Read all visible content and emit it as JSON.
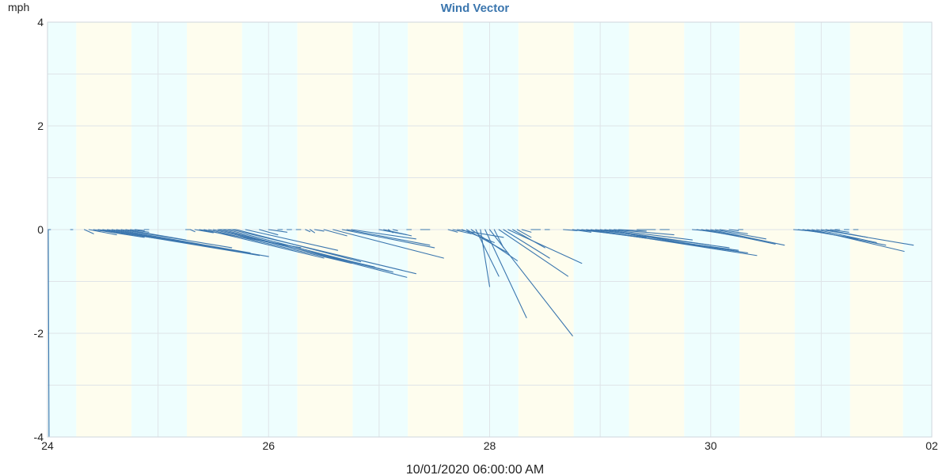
{
  "chart_data": {
    "type": "vector",
    "title": "Wind Vector",
    "ylabel": "mph",
    "xlabel": "10/01/2020 06:00:00 AM",
    "x_tick_labels": [
      "24",
      "26",
      "28",
      "30",
      "02"
    ],
    "y_tick_labels": [
      "4",
      "2",
      "0",
      "-2",
      "-4"
    ],
    "xlim": [
      "2020-09-24 00:00",
      "2020-10-02 00:00"
    ],
    "ylim": [
      -4,
      4
    ],
    "x_ticks": [
      "2020-09-24 00:00",
      "2020-09-26 00:00",
      "2020-09-28 00:00",
      "2020-09-30 00:00",
      "2020-10-02 00:00"
    ],
    "y_ticks": [
      4,
      2,
      0,
      -2,
      -4
    ],
    "grid": true,
    "background_bands": {
      "night_color": "#eefefe",
      "day_color": "#fefdee",
      "periods": [
        {
          "start": "2020-09-24 00:00",
          "end": "2020-09-24 06:15",
          "phase": "night"
        },
        {
          "start": "2020-09-24 06:15",
          "end": "2020-09-24 18:15",
          "phase": "day"
        },
        {
          "start": "2020-09-24 18:15",
          "end": "2020-09-25 06:15",
          "phase": "night"
        },
        {
          "start": "2020-09-25 06:15",
          "end": "2020-09-25 18:15",
          "phase": "day"
        },
        {
          "start": "2020-09-25 18:15",
          "end": "2020-09-26 06:15",
          "phase": "night"
        },
        {
          "start": "2020-09-26 06:15",
          "end": "2020-09-26 18:15",
          "phase": "day"
        },
        {
          "start": "2020-09-26 18:15",
          "end": "2020-09-27 06:15",
          "phase": "night"
        },
        {
          "start": "2020-09-27 06:15",
          "end": "2020-09-27 18:15",
          "phase": "day"
        },
        {
          "start": "2020-09-27 18:15",
          "end": "2020-09-28 06:15",
          "phase": "night"
        },
        {
          "start": "2020-09-28 06:15",
          "end": "2020-09-28 18:15",
          "phase": "day"
        },
        {
          "start": "2020-09-28 18:15",
          "end": "2020-09-29 06:15",
          "phase": "night"
        },
        {
          "start": "2020-09-29 06:15",
          "end": "2020-09-29 18:15",
          "phase": "day"
        },
        {
          "start": "2020-09-29 18:15",
          "end": "2020-09-30 06:15",
          "phase": "night"
        },
        {
          "start": "2020-09-30 06:15",
          "end": "2020-09-30 18:15",
          "phase": "day"
        },
        {
          "start": "2020-09-30 18:15",
          "end": "2020-10-01 06:15",
          "phase": "night"
        },
        {
          "start": "2020-10-01 06:15",
          "end": "2020-10-01 17:45",
          "phase": "day"
        },
        {
          "start": "2020-10-01 17:45",
          "end": "2020-10-02 00:00",
          "phase": "night"
        }
      ]
    },
    "series": [
      {
        "color": "#3b76ae",
        "segments": [
          {
            "x": "2020-09-24 00:00",
            "x_end": "2020-09-24 00:15",
            "y_end": 0.0
          },
          {
            "x": "2020-09-24 00:10",
            "x_end": "2020-09-24 00:20",
            "y_end": -4.0
          },
          {
            "x": "2020-09-24 00:20",
            "x_end": "2020-09-24 00:40",
            "y_end": 0.0
          },
          {
            "x": "2020-09-24 05:00",
            "x_end": "2020-09-24 05:30",
            "y_end": 0.0
          },
          {
            "x": "2020-09-24 08:00",
            "x_end": "2020-09-24 10:00",
            "y_end": -0.08
          },
          {
            "x": "2020-09-24 09:00",
            "x_end": "2020-09-24 15:00",
            "y_end": -0.1
          },
          {
            "x": "2020-09-24 10:00",
            "x_end": "2020-09-24 21:00",
            "y_end": -0.15
          },
          {
            "x": "2020-09-24 11:00",
            "x_end": "2020-09-25 02:00",
            "y_end": -0.2
          },
          {
            "x": "2020-09-24 12:00",
            "x_end": "2020-09-25 22:00",
            "y_end": -0.5
          },
          {
            "x": "2020-09-24 13:00",
            "x_end": "2020-09-25 21:00",
            "y_end": -0.48
          },
          {
            "x": "2020-09-24 14:00",
            "x_end": "2020-09-26 00:00",
            "y_end": -0.52
          },
          {
            "x": "2020-09-24 15:00",
            "x_end": "2020-09-25 20:00",
            "y_end": -0.45
          },
          {
            "x": "2020-09-24 16:00",
            "x_end": "2020-09-25 16:00",
            "y_end": -0.35
          },
          {
            "x": "2020-09-24 17:00",
            "x_end": "2020-09-25 06:00",
            "y_end": -0.2
          },
          {
            "x": "2020-09-24 18:00",
            "x_end": "2020-09-24 22:00",
            "y_end": -0.05
          },
          {
            "x": "2020-09-24 19:00",
            "x_end": "2020-09-24 21:00",
            "y_end": -0.02
          },
          {
            "x": "2020-09-24 21:00",
            "x_end": "2020-09-24 22:00",
            "y_end": 0.0
          },
          {
            "x": "2020-09-25 06:00",
            "x_end": "2020-09-25 07:00",
            "y_end": 0.0
          },
          {
            "x": "2020-09-25 13:00",
            "x_end": "2020-09-25 16:00",
            "y_end": 0.0
          },
          {
            "x": "2020-09-25 16:00",
            "x_end": "2020-09-25 17:00",
            "y_end": 0.0
          },
          {
            "x": "2020-09-25 07:00",
            "x_end": "2020-09-25 08:00",
            "y_end": -0.04
          },
          {
            "x": "2020-09-25 08:00",
            "x_end": "2020-09-25 12:00",
            "y_end": -0.06
          },
          {
            "x": "2020-09-25 09:00",
            "x_end": "2020-09-26 07:00",
            "y_end": -0.35
          },
          {
            "x": "2020-09-25 10:00",
            "x_end": "2020-09-26 12:00",
            "y_end": -0.55
          },
          {
            "x": "2020-09-25 11:00",
            "x_end": "2020-09-26 18:00",
            "y_end": -0.65
          },
          {
            "x": "2020-09-25 12:00",
            "x_end": "2020-09-26 23:00",
            "y_end": -0.72
          },
          {
            "x": "2020-09-25 13:00",
            "x_end": "2020-09-27 02:00",
            "y_end": -0.8
          },
          {
            "x": "2020-09-25 14:00",
            "x_end": "2020-09-27 06:00",
            "y_end": -0.92
          },
          {
            "x": "2020-09-25 15:00",
            "x_end": "2020-09-27 03:00",
            "y_end": -0.82
          },
          {
            "x": "2020-09-25 16:00",
            "x_end": "2020-09-27 08:00",
            "y_end": -0.85
          },
          {
            "x": "2020-09-25 17:00",
            "x_end": "2020-09-26 20:00",
            "y_end": -0.62
          },
          {
            "x": "2020-09-25 19:00",
            "x_end": "2020-09-26 15:00",
            "y_end": -0.4
          },
          {
            "x": "2020-09-25 22:00",
            "x_end": "2020-09-26 02:00",
            "y_end": -0.1
          },
          {
            "x": "2020-09-26 00:00",
            "x_end": "2020-09-26 04:00",
            "y_end": -0.05
          },
          {
            "x": "2020-09-26 02:00",
            "x_end": "2020-09-26 03:00",
            "y_end": 0.0
          },
          {
            "x": "2020-09-26 04:00",
            "x_end": "2020-09-26 05:00",
            "y_end": 0.0
          },
          {
            "x": "2020-09-26 06:00",
            "x_end": "2020-09-26 07:00",
            "y_end": 0.0
          },
          {
            "x": "2020-09-26 08:00",
            "x_end": "2020-09-26 09:00",
            "y_end": -0.04
          },
          {
            "x": "2020-09-26 09:00",
            "x_end": "2020-09-26 10:00",
            "y_end": -0.06
          },
          {
            "x": "2020-09-26 10:00",
            "x_end": "2020-09-26 12:00",
            "y_end": -0.03
          },
          {
            "x": "2020-09-26 12:00",
            "x_end": "2020-09-26 17:00",
            "y_end": -0.12
          },
          {
            "x": "2020-09-26 14:00",
            "x_end": "2020-09-27 14:00",
            "y_end": -0.55
          },
          {
            "x": "2020-09-26 16:00",
            "x_end": "2020-09-27 12:00",
            "y_end": -0.35
          },
          {
            "x": "2020-09-26 17:00",
            "x_end": "2020-09-27 11:00",
            "y_end": -0.3
          },
          {
            "x": "2020-09-26 18:00",
            "x_end": "2020-09-27 08:00",
            "y_end": -0.18
          },
          {
            "x": "2020-09-27 00:00",
            "x_end": "2020-09-27 06:00",
            "y_end": -0.1
          },
          {
            "x": "2020-09-27 01:00",
            "x_end": "2020-09-27 07:00",
            "y_end": -0.12
          },
          {
            "x": "2020-09-27 02:00",
            "x_end": "2020-09-27 03:00",
            "y_end": -0.06
          },
          {
            "x": "2020-09-27 03:00",
            "x_end": "2020-09-27 04:00",
            "y_end": -0.02
          },
          {
            "x": "2020-09-27 06:00",
            "x_end": "2020-09-27 07:00",
            "y_end": 0.0
          },
          {
            "x": "2020-09-27 09:00",
            "x_end": "2020-09-27 11:00",
            "y_end": 0.0
          },
          {
            "x": "2020-09-27 15:00",
            "x_end": "2020-09-27 17:00",
            "y_end": -0.05
          },
          {
            "x": "2020-09-27 16:00",
            "x_end": "2020-09-27 20:00",
            "y_end": -0.08
          },
          {
            "x": "2020-09-27 17:00",
            "x_end": "2020-09-28 03:00",
            "y_end": -0.15
          },
          {
            "x": "2020-09-27 18:00",
            "x_end": "2020-09-28 01:00",
            "y_end": -0.25
          },
          {
            "x": "2020-09-27 19:00",
            "x_end": "2020-09-28 04:00",
            "y_end": -0.45
          },
          {
            "x": "2020-09-27 20:00",
            "x_end": "2020-09-28 06:00",
            "y_end": -0.6
          },
          {
            "x": "2020-09-27 21:00",
            "x_end": "2020-09-28 02:00",
            "y_end": -0.9
          },
          {
            "x": "2020-09-27 22:00",
            "x_end": "2020-09-28 00:00",
            "y_end": -1.1
          },
          {
            "x": "2020-09-27 23:00",
            "x_end": "2020-09-28 08:00",
            "y_end": -1.7
          },
          {
            "x": "2020-09-28 00:00",
            "x_end": "2020-09-28 18:00",
            "y_end": -2.05
          },
          {
            "x": "2020-09-28 01:00",
            "x_end": "2020-09-28 03:00",
            "y_end": -0.35
          },
          {
            "x": "2020-09-28 02:00",
            "x_end": "2020-09-28 17:00",
            "y_end": -0.9
          },
          {
            "x": "2020-09-28 03:00",
            "x_end": "2020-09-28 13:00",
            "y_end": -0.55
          },
          {
            "x": "2020-09-28 04:00",
            "x_end": "2020-09-28 20:00",
            "y_end": -0.65
          },
          {
            "x": "2020-09-28 05:00",
            "x_end": "2020-09-28 12:00",
            "y_end": -0.35
          },
          {
            "x": "2020-09-28 06:00",
            "x_end": "2020-09-28 09:00",
            "y_end": -0.15
          },
          {
            "x": "2020-09-28 07:00",
            "x_end": "2020-09-28 09:00",
            "y_end": -0.05
          },
          {
            "x": "2020-09-28 09:00",
            "x_end": "2020-09-28 11:00",
            "y_end": 0.0
          },
          {
            "x": "2020-09-28 12:00",
            "x_end": "2020-09-28 13:00",
            "y_end": 0.0
          },
          {
            "x": "2020-09-28 16:00",
            "x_end": "2020-09-28 19:00",
            "y_end": -0.02
          },
          {
            "x": "2020-09-28 18:00",
            "x_end": "2020-09-28 22:00",
            "y_end": -0.05
          },
          {
            "x": "2020-09-28 19:00",
            "x_end": "2020-09-29 10:00",
            "y_end": -0.15
          },
          {
            "x": "2020-09-28 20:00",
            "x_end": "2020-09-30 06:00",
            "y_end": -0.4
          },
          {
            "x": "2020-09-28 21:00",
            "x_end": "2020-09-30 08:00",
            "y_end": -0.45
          },
          {
            "x": "2020-09-28 22:00",
            "x_end": "2020-09-30 10:00",
            "y_end": -0.5
          },
          {
            "x": "2020-09-28 23:00",
            "x_end": "2020-09-30 04:00",
            "y_end": -0.35
          },
          {
            "x": "2020-09-29 00:00",
            "x_end": "2020-09-30 06:00",
            "y_end": -0.42
          },
          {
            "x": "2020-09-29 01:00",
            "x_end": "2020-09-30 00:00",
            "y_end": -0.3
          },
          {
            "x": "2020-09-29 02:00",
            "x_end": "2020-09-29 20:00",
            "y_end": -0.2
          },
          {
            "x": "2020-09-29 03:00",
            "x_end": "2020-09-29 16:00",
            "y_end": -0.1
          },
          {
            "x": "2020-09-29 04:00",
            "x_end": "2020-09-29 10:00",
            "y_end": -0.03
          },
          {
            "x": "2020-09-29 08:00",
            "x_end": "2020-09-29 12:00",
            "y_end": 0.0
          },
          {
            "x": "2020-09-29 13:00",
            "x_end": "2020-09-29 15:00",
            "y_end": 0.0
          },
          {
            "x": "2020-09-29 20:00",
            "x_end": "2020-09-29 23:00",
            "y_end": -0.02
          },
          {
            "x": "2020-09-29 21:00",
            "x_end": "2020-09-30 06:00",
            "y_end": -0.12
          },
          {
            "x": "2020-09-29 22:00",
            "x_end": "2020-09-30 10:00",
            "y_end": -0.2
          },
          {
            "x": "2020-09-29 23:00",
            "x_end": "2020-09-30 14:00",
            "y_end": -0.28
          },
          {
            "x": "2020-09-30 00:00",
            "x_end": "2020-09-30 16:00",
            "y_end": -0.3
          },
          {
            "x": "2020-09-30 01:00",
            "x_end": "2020-09-30 12:00",
            "y_end": -0.18
          },
          {
            "x": "2020-09-30 02:00",
            "x_end": "2020-09-30 08:00",
            "y_end": -0.08
          },
          {
            "x": "2020-09-30 04:00",
            "x_end": "2020-09-30 06:00",
            "y_end": -0.02
          },
          {
            "x": "2020-09-30 06:00",
            "x_end": "2020-09-30 07:00",
            "y_end": 0.0
          },
          {
            "x": "2020-09-30 18:00",
            "x_end": "2020-09-30 21:00",
            "y_end": -0.02
          },
          {
            "x": "2020-09-30 19:00",
            "x_end": "2020-10-01 02:00",
            "y_end": -0.08
          },
          {
            "x": "2020-09-30 20:00",
            "x_end": "2020-10-01 08:00",
            "y_end": -0.18
          },
          {
            "x": "2020-09-30 21:00",
            "x_end": "2020-10-01 14:00",
            "y_end": -0.3
          },
          {
            "x": "2020-09-30 22:00",
            "x_end": "2020-10-01 18:00",
            "y_end": -0.42
          },
          {
            "x": "2020-09-30 23:00",
            "x_end": "2020-10-01 12:00",
            "y_end": -0.25
          },
          {
            "x": "2020-10-01 00:00",
            "x_end": "2020-10-01 20:00",
            "y_end": -0.3
          },
          {
            "x": "2020-10-01 01:00",
            "x_end": "2020-10-01 10:00",
            "y_end": -0.15
          },
          {
            "x": "2020-10-01 02:00",
            "x_end": "2020-10-01 06:00",
            "y_end": -0.05
          },
          {
            "x": "2020-10-01 03:00",
            "x_end": "2020-10-01 04:00",
            "y_end": 0.0
          },
          {
            "x": "2020-10-01 05:00",
            "x_end": "2020-10-01 06:00",
            "y_end": 0.0
          },
          {
            "x": "2020-10-01 07:00",
            "x_end": "2020-10-01 08:00",
            "y_end": 0.0
          }
        ]
      }
    ]
  }
}
